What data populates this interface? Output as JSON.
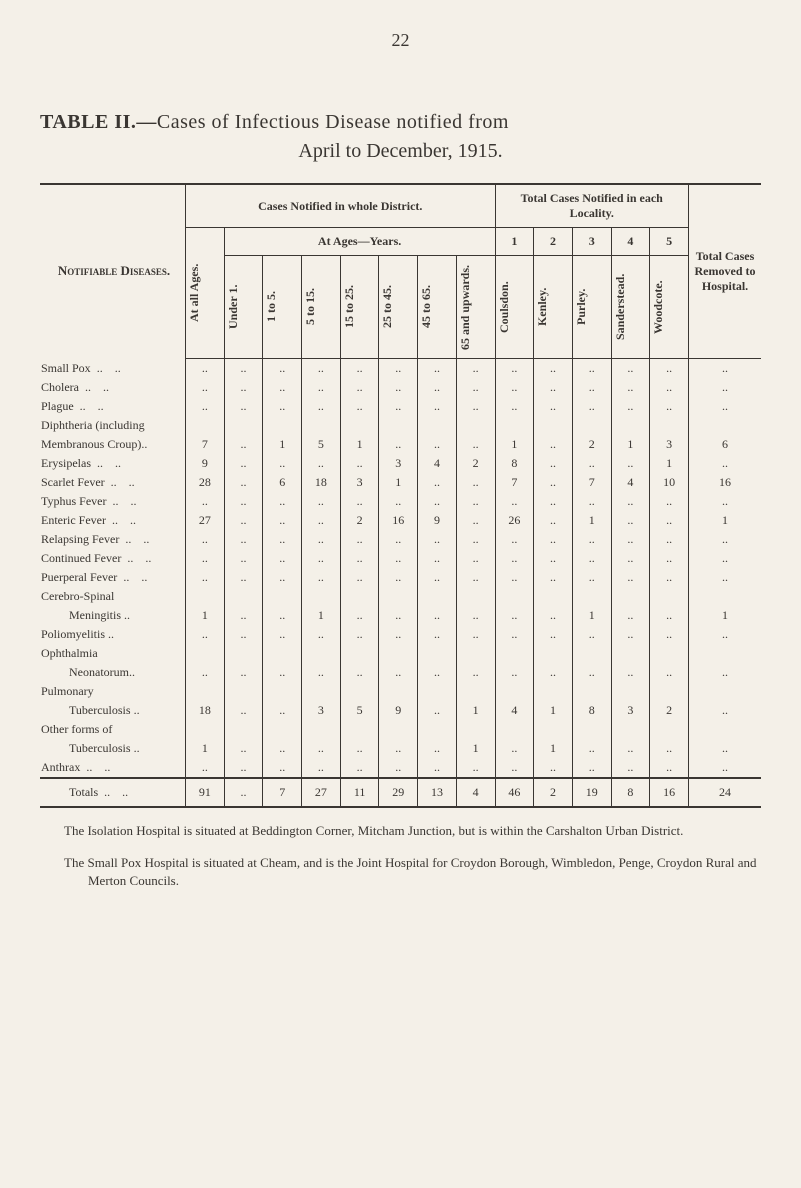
{
  "page_number": "22",
  "title_line1_prefix": "TABLE II.—",
  "title_line1_rest": "Cases of Infectious Disease notified from",
  "title_line2": "April to December, 1915.",
  "header_diseases": "Notifiable Diseases.",
  "header_cases_district": "Cases Notified in whole District.",
  "header_total_locality": "Total Cases Notified in each Locality.",
  "header_at_ages": "At Ages—Years.",
  "header_total_removed": "Total Cases Removed to Hospital.",
  "age_cols": [
    "At all Ages.",
    "Under 1.",
    "1 to 5.",
    "5 to 15.",
    "15 to 25.",
    "25 to 45.",
    "45 to 65.",
    "65 and upwards."
  ],
  "locality_nums": [
    "1",
    "2",
    "3",
    "4",
    "5"
  ],
  "locality_cols": [
    "Coulsdon.",
    "Kenley.",
    "Purley.",
    "Sanderstead.",
    "Woodcote."
  ],
  "rows": [
    {
      "name": "Small Pox",
      "indent": false,
      "v": [
        "..",
        "..",
        "..",
        "..",
        "..",
        "..",
        "..",
        "..",
        "..",
        "..",
        "..",
        "..",
        "..",
        ".."
      ]
    },
    {
      "name": "Cholera",
      "indent": false,
      "v": [
        "..",
        "..",
        "..",
        "..",
        "..",
        "..",
        "..",
        "..",
        "..",
        "..",
        "..",
        "..",
        "..",
        ".."
      ]
    },
    {
      "name": "Plague",
      "indent": false,
      "v": [
        "..",
        "..",
        "..",
        "..",
        "..",
        "..",
        "..",
        "..",
        "..",
        "..",
        "..",
        "..",
        "..",
        ".."
      ]
    },
    {
      "name": "Diphtheria (including",
      "indent": false,
      "nodots": true,
      "v": [
        "",
        "",
        "",
        "",
        "",
        "",
        "",
        "",
        "",
        "",
        "",
        "",
        "",
        ""
      ]
    },
    {
      "name": "Membranous Croup)..",
      "indent": false,
      "nodots": true,
      "v": [
        "7",
        "..",
        "1",
        "5",
        "1",
        "..",
        "..",
        "..",
        "1",
        "..",
        "2",
        "1",
        "3",
        "6"
      ]
    },
    {
      "name": "Erysipelas",
      "indent": false,
      "v": [
        "9",
        "..",
        "..",
        "..",
        "..",
        "3",
        "4",
        "2",
        "8",
        "..",
        "..",
        "..",
        "1",
        ".."
      ]
    },
    {
      "name": "Scarlet Fever",
      "indent": false,
      "v": [
        "28",
        "..",
        "6",
        "18",
        "3",
        "1",
        "..",
        "..",
        "7",
        "..",
        "7",
        "4",
        "10",
        "16"
      ]
    },
    {
      "name": "Typhus Fever",
      "indent": false,
      "v": [
        "..",
        "..",
        "..",
        "..",
        "..",
        "..",
        "..",
        "..",
        "..",
        "..",
        "..",
        "..",
        "..",
        ".."
      ]
    },
    {
      "name": "Enteric Fever",
      "indent": false,
      "v": [
        "27",
        "..",
        "..",
        "..",
        "2",
        "16",
        "9",
        "..",
        "26",
        "..",
        "1",
        "..",
        "..",
        "1"
      ]
    },
    {
      "name": "Relapsing Fever",
      "indent": false,
      "v": [
        "..",
        "..",
        "..",
        "..",
        "..",
        "..",
        "..",
        "..",
        "..",
        "..",
        "..",
        "..",
        "..",
        ".."
      ]
    },
    {
      "name": "Continued Fever",
      "indent": false,
      "v": [
        "..",
        "..",
        "..",
        "..",
        "..",
        "..",
        "..",
        "..",
        "..",
        "..",
        "..",
        "..",
        "..",
        ".."
      ]
    },
    {
      "name": "Puerperal Fever",
      "indent": false,
      "v": [
        "..",
        "..",
        "..",
        "..",
        "..",
        "..",
        "..",
        "..",
        "..",
        "..",
        "..",
        "..",
        "..",
        ".."
      ]
    },
    {
      "name": "Cerebro-Spinal",
      "indent": false,
      "nodots": true,
      "v": [
        "",
        "",
        "",
        "",
        "",
        "",
        "",
        "",
        "",
        "",
        "",
        "",
        "",
        ""
      ]
    },
    {
      "name": "Meningitis ..",
      "indent": true,
      "nodots": true,
      "v": [
        "1",
        "..",
        "..",
        "1",
        "..",
        "..",
        "..",
        "..",
        "..",
        "..",
        "1",
        "..",
        "..",
        "1"
      ]
    },
    {
      "name": "Poliomyelitis ..",
      "indent": false,
      "nodots": true,
      "v": [
        "..",
        "..",
        "..",
        "..",
        "..",
        "..",
        "..",
        "..",
        "..",
        "..",
        "..",
        "..",
        "..",
        ".."
      ]
    },
    {
      "name": "Ophthalmia",
      "indent": false,
      "nodots": true,
      "v": [
        "",
        "",
        "",
        "",
        "",
        "",
        "",
        "",
        "",
        "",
        "",
        "",
        "",
        ""
      ]
    },
    {
      "name": "Neonatorum..",
      "indent": true,
      "nodots": true,
      "v": [
        "..",
        "..",
        "..",
        "..",
        "..",
        "..",
        "..",
        "..",
        "..",
        "..",
        "..",
        "..",
        "..",
        ".."
      ]
    },
    {
      "name": "Pulmonary",
      "indent": false,
      "nodots": true,
      "v": [
        "",
        "",
        "",
        "",
        "",
        "",
        "",
        "",
        "",
        "",
        "",
        "",
        "",
        ""
      ]
    },
    {
      "name": "Tuberculosis ..",
      "indent": true,
      "nodots": true,
      "v": [
        "18",
        "..",
        "..",
        "3",
        "5",
        "9",
        "..",
        "1",
        "4",
        "1",
        "8",
        "3",
        "2",
        ".."
      ]
    },
    {
      "name": "Other forms of",
      "indent": false,
      "nodots": true,
      "v": [
        "",
        "",
        "",
        "",
        "",
        "",
        "",
        "",
        "",
        "",
        "",
        "",
        "",
        ""
      ]
    },
    {
      "name": "Tuberculosis ..",
      "indent": true,
      "nodots": true,
      "v": [
        "1",
        "..",
        "..",
        "..",
        "..",
        "..",
        "..",
        "1",
        "..",
        "1",
        "..",
        "..",
        "..",
        ".."
      ]
    },
    {
      "name": "Anthrax",
      "indent": false,
      "v": [
        "..",
        "..",
        "..",
        "..",
        "..",
        "..",
        "..",
        "..",
        "..",
        "..",
        "..",
        "..",
        "..",
        ".."
      ]
    }
  ],
  "totals": {
    "name": "Totals",
    "v": [
      "91",
      "..",
      "7",
      "27",
      "11",
      "29",
      "13",
      "4",
      "46",
      "2",
      "19",
      "8",
      "16",
      "24"
    ]
  },
  "footnote1": "The Isolation Hospital is situated at Beddington Corner, Mitcham Junction, but is within the Carshalton Urban District.",
  "footnote2": "The Small Pox Hospital is situated at Cheam, and is the Joint Hospital for Croydon Borough, Wimbledon, Penge, Croydon Rural and Merton Councils.",
  "colors": {
    "bg": "#f4f0e8",
    "text": "#3a3632",
    "border": "#3a3632"
  }
}
